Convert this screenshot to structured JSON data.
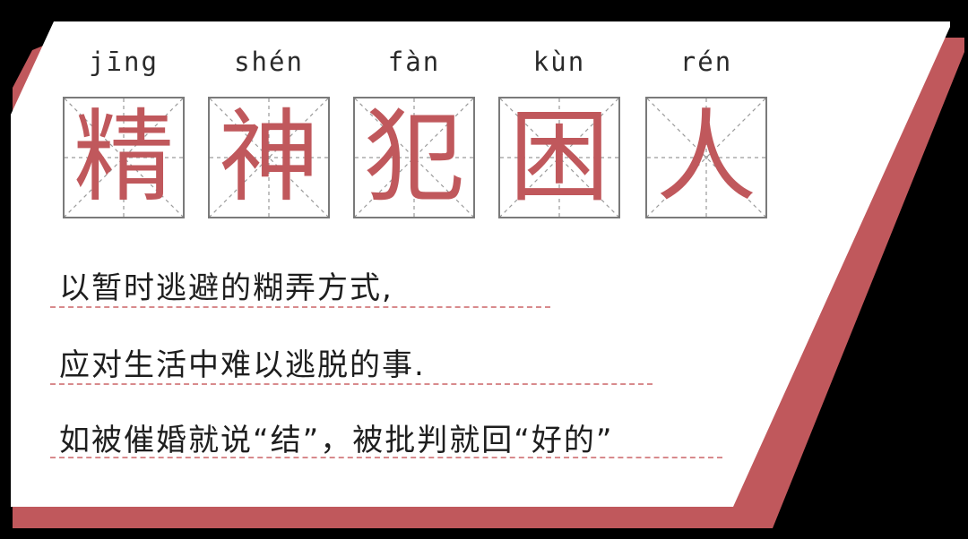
{
  "title": {
    "characters": [
      {
        "pinyin": "jīng",
        "char": "精"
      },
      {
        "pinyin": "shén",
        "char": "神"
      },
      {
        "pinyin": "fàn",
        "char": "犯"
      },
      {
        "pinyin": "kùn",
        "char": "困"
      },
      {
        "pinyin": "rén",
        "char": "人"
      }
    ]
  },
  "definition": {
    "lines": [
      "以暂时逃避的糊弄方式,",
      "应对生活中难以逃脱的事.",
      "如被催婚就说“结”，被批判就回“好的”"
    ]
  },
  "colors": {
    "accent": "#c0585c",
    "card": "#ffffff",
    "background": "#000000",
    "grid_border": "#7a7a7a",
    "dashed_guide": "#9a9a9a"
  }
}
